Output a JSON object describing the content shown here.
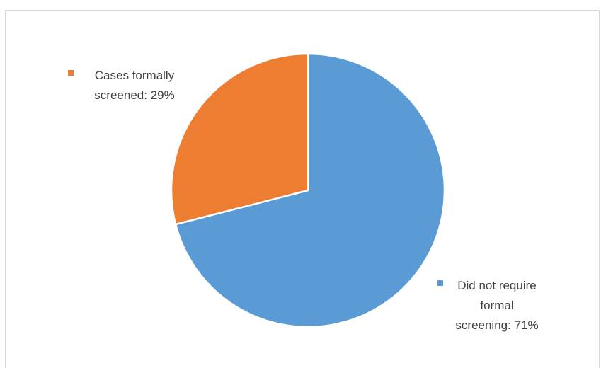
{
  "chart_data": {
    "type": "pie",
    "title": "",
    "slices": [
      {
        "name": "Did not require formal screening",
        "value": 71,
        "label_lines": [
          "Did not require",
          "formal",
          "screening: 71%"
        ],
        "color": "#5b9bd5"
      },
      {
        "name": "Cases formally screened",
        "value": 29,
        "label_lines": [
          "Cases formally",
          "screened: 29%"
        ],
        "color": "#ed7d31"
      }
    ],
    "start_angle": "12 o'clock",
    "direction": "clockwise",
    "legend": "none (data labels beside slices)"
  }
}
